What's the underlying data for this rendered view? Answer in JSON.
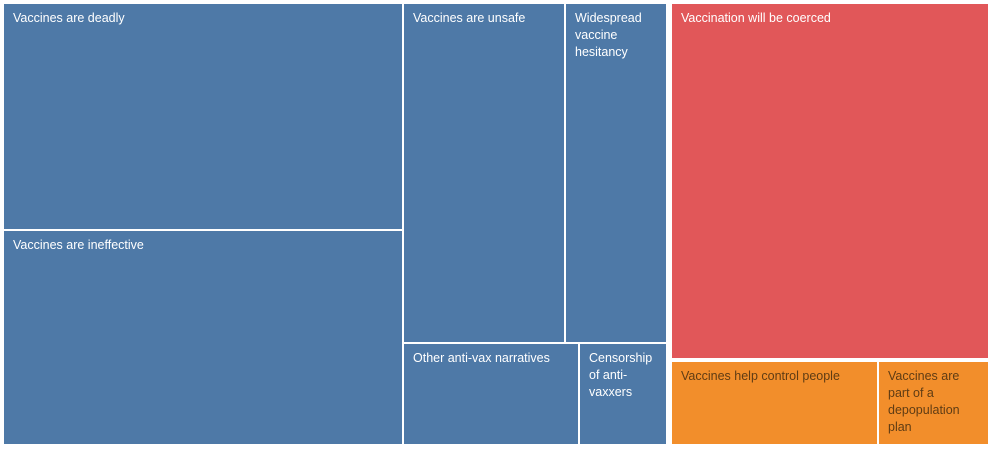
{
  "chart_data": {
    "type": "treemap",
    "title": "",
    "xlabel": "",
    "ylabel": "",
    "legend_position": "none",
    "background": "#ffffff",
    "groups": [
      {
        "name": "anti-vax-narratives",
        "color": "#4e79a7"
      },
      {
        "name": "coercion-narratives",
        "colors": [
          "#e15759",
          "#f28e2b"
        ]
      }
    ],
    "items": [
      {
        "label": "Vaccines are deadly",
        "color": "#4e79a7",
        "label_color": "#ffffff",
        "share_pct": 21.0
      },
      {
        "label": "Vaccines are ineffective",
        "color": "#4e79a7",
        "label_color": "#ffffff",
        "share_pct": 19.9
      },
      {
        "label": "Vaccines are unsafe",
        "color": "#4e79a7",
        "label_color": "#ffffff",
        "share_pct": 12.7
      },
      {
        "label": "Widespread vaccine hesitancy",
        "color": "#4e79a7",
        "label_color": "#ffffff",
        "share_pct": 7.9
      },
      {
        "label": "Other anti-vax narratives",
        "color": "#4e79a7",
        "label_color": "#ffffff",
        "share_pct": 4.1
      },
      {
        "label": "Censorship of anti-vaxxers",
        "color": "#4e79a7",
        "label_color": "#ffffff",
        "share_pct": 2.0
      },
      {
        "label": "Vaccination will be coerced",
        "color": "#e15759",
        "label_color": "#ffffff",
        "share_pct": 26.3
      },
      {
        "label": "Vaccines help control people",
        "color": "#f28e2b",
        "label_color": "#5f3c14",
        "share_pct": 3.9
      },
      {
        "label": "Vaccines are part of a depopulation plan",
        "color": "#f28e2b",
        "label_color": "#5f3c14",
        "share_pct": 2.1
      }
    ]
  }
}
